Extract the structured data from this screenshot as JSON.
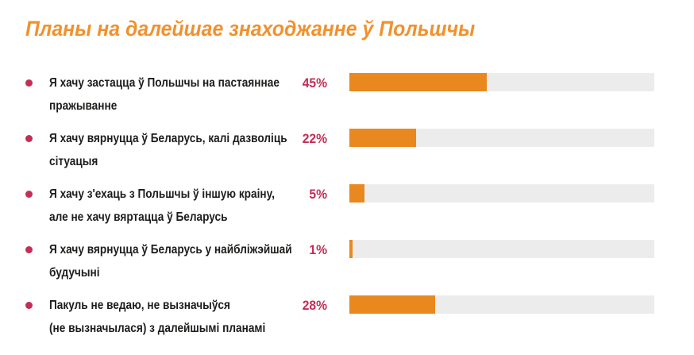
{
  "colors": {
    "title_color": "#F1912D",
    "bar_fill": "#E8881F",
    "bar_track": "#ECECEC",
    "value_text": "#C42D56",
    "bullet": "#C42D56",
    "label_text": "#1D1D1B"
  },
  "chart_data": {
    "type": "bar",
    "orientation": "horizontal",
    "title": "Планы на далейшае знаходжанне ў Польшчы",
    "xlim": [
      0,
      100
    ],
    "unit": "%",
    "legend": "none",
    "grid": false,
    "items": [
      {
        "label_line1": "Я хачу застацца ў Польшчы на пастаяннае",
        "label_line2": "пражыванне",
        "value": 45,
        "value_label": "45%"
      },
      {
        "label_line1": "Я хачу вярнуцца ў Беларусь, калі дазволіць",
        "label_line2": "сітуацыя",
        "value": 22,
        "value_label": "22%"
      },
      {
        "label_line1": "Я хачу з'ехаць з Польшчы ў іншую краіну,",
        "label_line2": "але не хачу вяртацца ў Беларусь",
        "value": 5,
        "value_label": "5%"
      },
      {
        "label_line1": "Я хачу вярнуцца ў Беларусь у найбліжэйшай",
        "label_line2": "будучыні",
        "value": 1,
        "value_label": "1%"
      },
      {
        "label_line1": "Пакуль не ведаю, не вызначыўся",
        "label_line2": "(не вызначылася) з далейшымі планамі",
        "value": 28,
        "value_label": "28%"
      }
    ]
  }
}
